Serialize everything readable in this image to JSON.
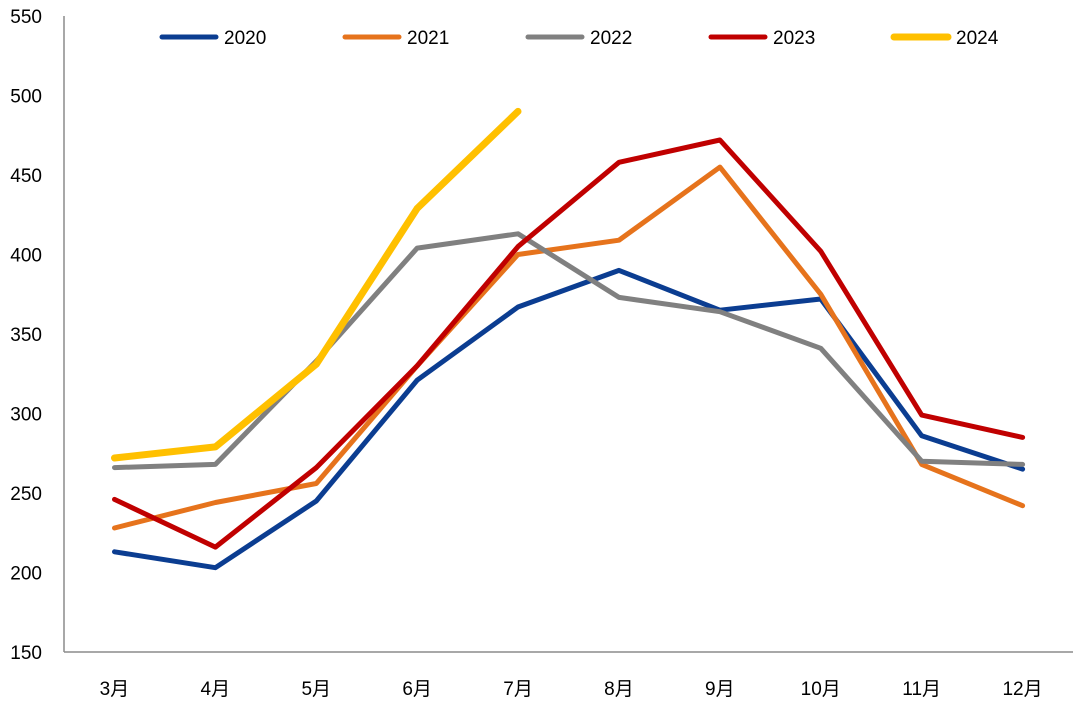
{
  "chart_data": {
    "type": "line",
    "categories": [
      "3月",
      "4月",
      "5月",
      "6月",
      "7月",
      "8月",
      "9月",
      "10月",
      "11月",
      "12月"
    ],
    "series": [
      {
        "name": "2020",
        "color": "#0B3D91",
        "values": [
          213,
          203,
          245,
          321,
          367,
          390,
          365,
          372,
          286,
          265
        ]
      },
      {
        "name": "2021",
        "color": "#E6731C",
        "values": [
          228,
          244,
          256,
          330,
          400,
          409,
          455,
          375,
          268,
          242
        ]
      },
      {
        "name": "2022",
        "color": "#808080",
        "values": [
          266,
          268,
          333,
          404,
          413,
          373,
          364,
          341,
          270,
          268
        ]
      },
      {
        "name": "2023",
        "color": "#C00000",
        "values": [
          246,
          216,
          266,
          330,
          405,
          458,
          472,
          402,
          299,
          285
        ]
      },
      {
        "name": "2024",
        "color": "#FFC000",
        "values": [
          272,
          279,
          331,
          429,
          490,
          null,
          null,
          null,
          null,
          null
        ]
      }
    ],
    "title": "",
    "xlabel": "",
    "ylabel": "",
    "ylim": [
      150,
      550
    ],
    "yticks": [
      "150",
      "200",
      "250",
      "300",
      "350",
      "400",
      "450",
      "500",
      "550"
    ],
    "grid": false,
    "legend_position": "top"
  }
}
